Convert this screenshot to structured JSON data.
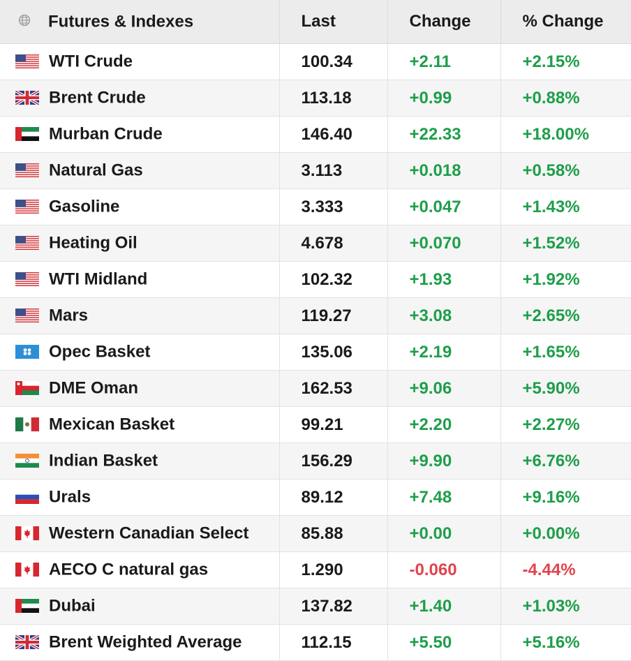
{
  "header": {
    "icon": "globe-icon",
    "name": "Futures & Indexes",
    "last": "Last",
    "change": "Change",
    "pct_change": "% Change"
  },
  "colors": {
    "positive": "#1e9e4a",
    "negative": "#e0434b"
  },
  "rows": [
    {
      "flag": "us",
      "name": "WTI Crude",
      "last": "100.34",
      "change": "+2.11",
      "pct": "+2.15%",
      "dir": "pos"
    },
    {
      "flag": "uk",
      "name": "Brent Crude",
      "last": "113.18",
      "change": "+0.99",
      "pct": "+0.88%",
      "dir": "pos"
    },
    {
      "flag": "ae",
      "name": "Murban Crude",
      "last": "146.40",
      "change": "+22.33",
      "pct": "+18.00%",
      "dir": "pos"
    },
    {
      "flag": "us",
      "name": "Natural Gas",
      "last": "3.113",
      "change": "+0.018",
      "pct": "+0.58%",
      "dir": "pos"
    },
    {
      "flag": "us",
      "name": "Gasoline",
      "last": "3.333",
      "change": "+0.047",
      "pct": "+1.43%",
      "dir": "pos"
    },
    {
      "flag": "us",
      "name": "Heating Oil",
      "last": "4.678",
      "change": "+0.070",
      "pct": "+1.52%",
      "dir": "pos"
    },
    {
      "flag": "us",
      "name": "WTI Midland",
      "last": "102.32",
      "change": "+1.93",
      "pct": "+1.92%",
      "dir": "pos"
    },
    {
      "flag": "us",
      "name": "Mars",
      "last": "119.27",
      "change": "+3.08",
      "pct": "+2.65%",
      "dir": "pos"
    },
    {
      "flag": "opec",
      "name": "Opec Basket",
      "last": "135.06",
      "change": "+2.19",
      "pct": "+1.65%",
      "dir": "pos"
    },
    {
      "flag": "om",
      "name": "DME Oman",
      "last": "162.53",
      "change": "+9.06",
      "pct": "+5.90%",
      "dir": "pos"
    },
    {
      "flag": "mx",
      "name": "Mexican Basket",
      "last": "99.21",
      "change": "+2.20",
      "pct": "+2.27%",
      "dir": "pos"
    },
    {
      "flag": "in",
      "name": "Indian Basket",
      "last": "156.29",
      "change": "+9.90",
      "pct": "+6.76%",
      "dir": "pos"
    },
    {
      "flag": "ru",
      "name": "Urals",
      "last": "89.12",
      "change": "+7.48",
      "pct": "+9.16%",
      "dir": "pos"
    },
    {
      "flag": "ca",
      "name": "Western Canadian Select",
      "last": "85.88",
      "change": "+0.00",
      "pct": "+0.00%",
      "dir": "pos"
    },
    {
      "flag": "ca",
      "name": "AECO C natural gas",
      "last": "1.290",
      "change": "-0.060",
      "pct": "-4.44%",
      "dir": "neg"
    },
    {
      "flag": "ae",
      "name": "Dubai",
      "last": "137.82",
      "change": "+1.40",
      "pct": "+1.03%",
      "dir": "pos"
    },
    {
      "flag": "uk",
      "name": "Brent Weighted Average",
      "last": "112.15",
      "change": "+5.50",
      "pct": "+5.16%",
      "dir": "pos"
    }
  ]
}
